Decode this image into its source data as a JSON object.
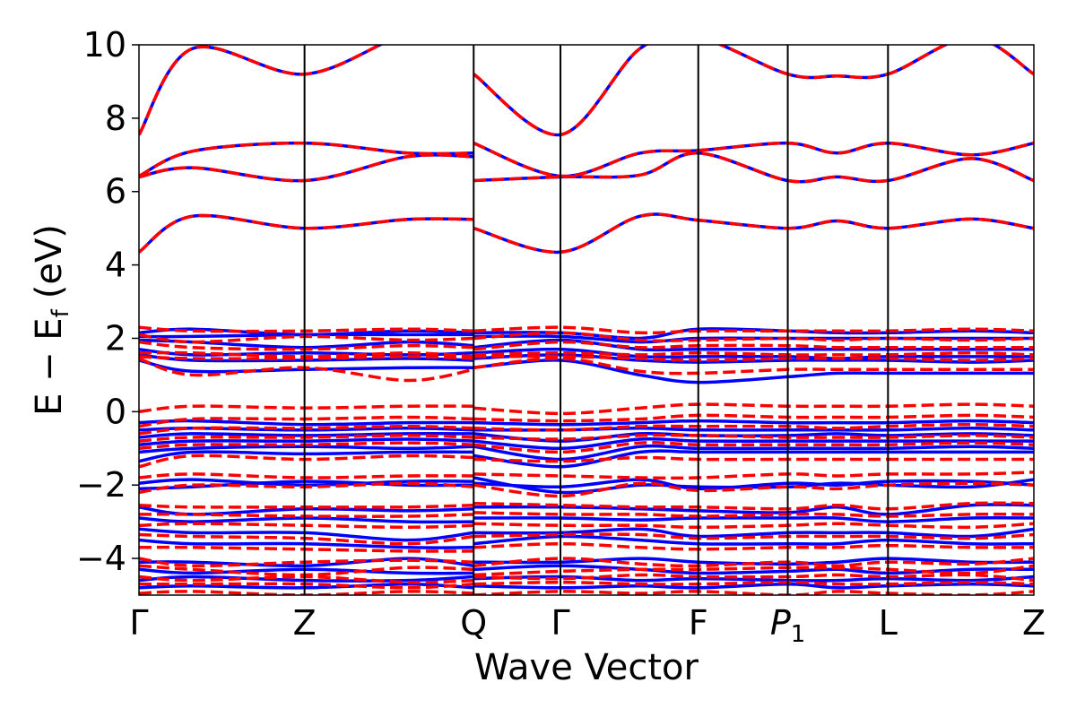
{
  "chart_data": {
    "type": "line",
    "title": "",
    "xlabel": "Wave Vector",
    "ylabel": "E − E",
    "ylabel_subscript": "f",
    "ylabel_unit": "(eV)",
    "ylim": [
      -5,
      10
    ],
    "yticks": [
      -4,
      -2,
      0,
      2,
      4,
      6,
      8,
      10
    ],
    "ytick_labels": [
      "−4",
      "−2",
      "0",
      "2",
      "4",
      "6",
      "8",
      "10"
    ],
    "k_points": [
      {
        "label": "Γ",
        "x": 0.0
      },
      {
        "label": "Z",
        "x": 0.185
      },
      {
        "label": "Q",
        "x": 0.374
      },
      {
        "label": "Γ",
        "x": 0.471
      },
      {
        "label": "F",
        "x": 0.625
      },
      {
        "label": "P",
        "sub": "1",
        "italic": true,
        "x": 0.725
      },
      {
        "label": "L",
        "x": 0.837
      },
      {
        "label": "Z",
        "x": 1.0
      }
    ],
    "xlim": [
      0,
      1
    ],
    "grid": false,
    "series": [
      {
        "style": "solid",
        "color": "#0000ff",
        "bands": [
          [
            4.35,
            5.33,
            5.0,
            5.24,
            5.24,
            5.0,
            4.35,
            5.33,
            5.22,
            5.0,
            5.2,
            5.0,
            5.25,
            5.0
          ],
          [
            6.4,
            6.65,
            6.3,
            6.95,
            6.95,
            6.3,
            6.4,
            6.45,
            7.05,
            6.3,
            6.4,
            6.3,
            6.9,
            6.3
          ],
          [
            6.42,
            7.1,
            7.32,
            7.05,
            7.05,
            7.32,
            6.42,
            7.05,
            7.12,
            7.32,
            7.05,
            7.32,
            7.0,
            7.32
          ],
          [
            7.55,
            9.9,
            9.2,
            10.3,
            10.3,
            9.2,
            7.55,
            9.9,
            10.2,
            9.2,
            9.15,
            9.2,
            10.2,
            9.2
          ],
          [
            2.15,
            2.25,
            2.1,
            2.2,
            2.15,
            2.15,
            2.15,
            2.0,
            2.25,
            2.2,
            2.15,
            2.15,
            2.2,
            2.15
          ],
          [
            2.05,
            2.05,
            2.1,
            2.1,
            2.1,
            2.05,
            2.05,
            1.9,
            2.0,
            2.0,
            2.0,
            2.0,
            2.0,
            2.0
          ],
          [
            1.95,
            1.9,
            1.75,
            1.9,
            1.8,
            1.75,
            1.95,
            1.7,
            1.7,
            1.7,
            1.7,
            1.7,
            1.7,
            1.7
          ],
          [
            1.7,
            1.55,
            1.6,
            1.55,
            1.6,
            1.6,
            1.7,
            1.5,
            1.5,
            1.5,
            1.45,
            1.5,
            1.5,
            1.5
          ],
          [
            1.55,
            1.4,
            1.4,
            1.45,
            1.4,
            1.45,
            1.55,
            1.4,
            1.35,
            1.4,
            1.4,
            1.4,
            1.35,
            1.4
          ],
          [
            1.4,
            1.1,
            1.15,
            1.2,
            1.2,
            1.2,
            1.4,
            1.0,
            0.8,
            0.95,
            1.05,
            1.05,
            1.05,
            1.05
          ],
          [
            -0.3,
            -0.25,
            -0.35,
            -0.3,
            -0.3,
            -0.3,
            -0.35,
            -0.3,
            -0.25,
            -0.3,
            -0.3,
            -0.3,
            -0.25,
            -0.3
          ],
          [
            -0.5,
            -0.45,
            -0.5,
            -0.45,
            -0.5,
            -0.5,
            -0.5,
            -0.45,
            -0.5,
            -0.5,
            -0.5,
            -0.5,
            -0.45,
            -0.5
          ],
          [
            -0.7,
            -0.6,
            -0.65,
            -0.6,
            -0.6,
            -0.6,
            -0.8,
            -0.6,
            -0.65,
            -0.65,
            -0.6,
            -0.65,
            -0.6,
            -0.65
          ],
          [
            -0.9,
            -0.8,
            -0.8,
            -0.75,
            -0.8,
            -0.8,
            -1.0,
            -0.75,
            -0.8,
            -0.8,
            -0.8,
            -0.8,
            -0.8,
            -0.8
          ],
          [
            -1.1,
            -1.0,
            -0.95,
            -1.0,
            -0.95,
            -0.95,
            -1.3,
            -0.95,
            -1.0,
            -1.0,
            -1.0,
            -1.0,
            -0.95,
            -1.0
          ],
          [
            -1.35,
            -1.1,
            -1.15,
            -1.1,
            -1.1,
            -1.2,
            -1.5,
            -1.1,
            -1.1,
            -1.1,
            -1.1,
            -1.1,
            -1.1,
            -1.1
          ],
          [
            -1.95,
            -1.85,
            -2.0,
            -1.9,
            -1.9,
            -1.8,
            -2.2,
            -2.0,
            -2.05,
            -2.05,
            -1.95,
            -2.0,
            -2.05,
            -1.85
          ],
          [
            -2.1,
            -2.05,
            -1.9,
            -2.0,
            -2.0,
            -1.95,
            -2.05,
            -1.85,
            -2.1,
            -1.95,
            -2.0,
            -1.9,
            -1.9,
            -2.0
          ],
          [
            -2.6,
            -2.8,
            -2.65,
            -2.7,
            -2.65,
            -2.6,
            -2.6,
            -2.65,
            -2.7,
            -2.75,
            -2.6,
            -2.8,
            -2.55,
            -2.55
          ],
          [
            -2.9,
            -3.0,
            -2.9,
            -3.0,
            -3.0,
            -2.9,
            -2.9,
            -2.95,
            -2.9,
            -2.9,
            -2.9,
            -3.0,
            -2.9,
            -2.9
          ],
          [
            -3.2,
            -3.3,
            -3.3,
            -3.5,
            -3.3,
            -3.3,
            -3.3,
            -3.2,
            -3.4,
            -3.3,
            -3.3,
            -3.3,
            -3.4,
            -3.2
          ],
          [
            -3.5,
            -3.6,
            -3.6,
            -3.7,
            -3.7,
            -3.6,
            -3.4,
            -3.5,
            -3.6,
            -3.6,
            -3.6,
            -3.5,
            -3.6,
            -3.6
          ],
          [
            -4.1,
            -4.1,
            -4.2,
            -4.0,
            -4.2,
            -4.1,
            -4.1,
            -4.0,
            -4.1,
            -4.15,
            -4.1,
            -4.0,
            -4.1,
            -4.1
          ],
          [
            -4.3,
            -4.4,
            -4.3,
            -4.4,
            -4.4,
            -4.3,
            -4.2,
            -4.3,
            -4.4,
            -4.35,
            -4.3,
            -4.4,
            -4.3,
            -4.3
          ],
          [
            -4.6,
            -4.5,
            -4.6,
            -4.6,
            -4.5,
            -4.55,
            -4.5,
            -4.6,
            -4.55,
            -4.6,
            -4.6,
            -4.55,
            -4.6,
            -4.5
          ],
          [
            -4.8,
            -4.75,
            -4.8,
            -4.7,
            -4.8,
            -4.75,
            -4.8,
            -4.75,
            -4.8,
            -4.7,
            -4.8,
            -4.75,
            -4.7,
            -4.75
          ]
        ]
      },
      {
        "style": "dashed",
        "color": "#ff0000",
        "bands": [
          [
            4.35,
            5.33,
            5.0,
            5.24,
            5.24,
            5.0,
            4.35,
            5.33,
            5.22,
            5.0,
            5.2,
            5.0,
            5.25,
            5.0
          ],
          [
            6.4,
            6.65,
            6.3,
            6.95,
            6.95,
            6.3,
            6.4,
            6.45,
            7.05,
            6.3,
            6.4,
            6.3,
            6.9,
            6.3
          ],
          [
            6.42,
            7.1,
            7.32,
            7.05,
            7.05,
            7.32,
            6.42,
            7.05,
            7.12,
            7.32,
            7.05,
            7.32,
            7.0,
            7.32
          ],
          [
            7.55,
            9.9,
            9.2,
            10.3,
            10.3,
            9.2,
            7.55,
            9.9,
            10.2,
            9.2,
            9.15,
            9.2,
            10.2,
            9.2
          ],
          [
            2.3,
            2.2,
            2.2,
            2.25,
            2.2,
            2.2,
            2.3,
            2.15,
            2.2,
            2.2,
            2.2,
            2.2,
            2.25,
            2.2
          ],
          [
            2.1,
            1.9,
            2.05,
            1.95,
            2.0,
            2.0,
            2.15,
            1.95,
            1.95,
            2.0,
            1.95,
            2.0,
            1.95,
            2.0
          ],
          [
            1.9,
            1.75,
            1.7,
            1.8,
            1.75,
            1.7,
            1.9,
            1.75,
            1.8,
            1.8,
            1.75,
            1.75,
            1.75,
            1.75
          ],
          [
            1.6,
            1.6,
            1.5,
            1.6,
            1.5,
            1.55,
            1.6,
            1.55,
            1.6,
            1.55,
            1.55,
            1.55,
            1.6,
            1.55
          ],
          [
            1.5,
            1.45,
            1.45,
            1.5,
            1.45,
            1.5,
            1.5,
            1.45,
            1.4,
            1.45,
            1.45,
            1.45,
            1.4,
            1.45
          ],
          [
            1.45,
            1.0,
            1.2,
            0.85,
            1.15,
            1.2,
            1.45,
            1.1,
            1.05,
            1.15,
            1.15,
            1.15,
            1.15,
            1.15
          ],
          [
            0.0,
            0.15,
            0.1,
            0.15,
            0.15,
            0.1,
            -0.05,
            0.1,
            0.2,
            0.15,
            0.15,
            0.15,
            0.2,
            0.15
          ],
          [
            -0.4,
            -0.2,
            -0.2,
            -0.15,
            -0.2,
            -0.2,
            -0.25,
            -0.2,
            -0.1,
            -0.15,
            -0.15,
            -0.15,
            -0.1,
            -0.15
          ],
          [
            -0.6,
            -0.45,
            -0.45,
            -0.4,
            -0.45,
            -0.45,
            -0.5,
            -0.4,
            -0.4,
            -0.4,
            -0.45,
            -0.4,
            -0.35,
            -0.4
          ],
          [
            -0.8,
            -0.7,
            -0.7,
            -0.65,
            -0.7,
            -0.7,
            -0.75,
            -0.65,
            -0.65,
            -0.7,
            -0.7,
            -0.7,
            -0.65,
            -0.7
          ],
          [
            -1.0,
            -0.9,
            -0.9,
            -0.85,
            -0.9,
            -0.9,
            -1.1,
            -0.85,
            -0.9,
            -0.9,
            -0.9,
            -0.9,
            -0.85,
            -0.9
          ],
          [
            -1.5,
            -1.2,
            -1.3,
            -1.2,
            -1.25,
            -1.3,
            -1.35,
            -1.25,
            -1.3,
            -1.3,
            -1.3,
            -1.3,
            -1.3,
            -1.3
          ],
          [
            -1.8,
            -1.7,
            -1.8,
            -1.75,
            -1.75,
            -1.7,
            -1.75,
            -1.8,
            -1.8,
            -1.7,
            -1.75,
            -1.7,
            -1.7,
            -1.65
          ],
          [
            -2.2,
            -2.0,
            -2.05,
            -1.95,
            -2.05,
            -2.0,
            -2.3,
            -1.95,
            -2.15,
            -2.05,
            -2.1,
            -2.0,
            -1.95,
            -2.0
          ],
          [
            -2.55,
            -2.6,
            -2.6,
            -2.6,
            -2.55,
            -2.5,
            -2.55,
            -2.6,
            -2.6,
            -2.65,
            -2.55,
            -2.65,
            -2.5,
            -2.5
          ],
          [
            -2.8,
            -2.8,
            -2.85,
            -2.85,
            -2.8,
            -2.75,
            -2.8,
            -2.8,
            -2.85,
            -2.8,
            -2.8,
            -2.85,
            -2.8,
            -2.8
          ],
          [
            -3.1,
            -3.05,
            -3.1,
            -3.15,
            -3.1,
            -3.05,
            -3.1,
            -3.1,
            -3.15,
            -3.1,
            -3.05,
            -3.1,
            -3.15,
            -3.05
          ],
          [
            -3.35,
            -3.4,
            -3.45,
            -3.6,
            -3.4,
            -3.4,
            -3.35,
            -3.35,
            -3.45,
            -3.4,
            -3.4,
            -3.4,
            -3.45,
            -3.35
          ],
          [
            -3.7,
            -3.7,
            -3.75,
            -3.8,
            -3.8,
            -3.7,
            -3.6,
            -3.7,
            -3.75,
            -3.7,
            -3.7,
            -3.65,
            -3.7,
            -3.7
          ],
          [
            -4.0,
            -4.2,
            -4.1,
            -4.05,
            -4.1,
            -4.2,
            -4.0,
            -4.15,
            -4.2,
            -4.1,
            -4.2,
            -4.1,
            -4.15,
            -4.0
          ],
          [
            -4.2,
            -4.3,
            -4.45,
            -4.25,
            -4.3,
            -4.45,
            -4.35,
            -4.3,
            -4.3,
            -4.25,
            -4.25,
            -4.3,
            -4.4,
            -4.2
          ],
          [
            -4.5,
            -4.6,
            -4.5,
            -4.65,
            -4.6,
            -4.5,
            -4.55,
            -4.45,
            -4.5,
            -4.5,
            -4.45,
            -4.5,
            -4.45,
            -4.6
          ],
          [
            -4.7,
            -4.7,
            -4.7,
            -4.8,
            -4.7,
            -4.7,
            -4.65,
            -4.7,
            -4.7,
            -4.65,
            -4.7,
            -4.7,
            -4.65,
            -4.7
          ],
          [
            -4.95,
            -4.9,
            -5.0,
            -4.9,
            -4.95,
            -5.0,
            -4.9,
            -4.95,
            -4.9,
            -5.0,
            -4.9,
            -4.95,
            -5.0,
            -4.9
          ]
        ]
      }
    ],
    "band_sample_x": [
      0.0,
      0.06,
      0.185,
      0.3,
      0.374,
      0.374,
      0.471,
      0.56,
      0.625,
      0.725,
      0.78,
      0.837,
      0.93,
      1.0
    ]
  }
}
